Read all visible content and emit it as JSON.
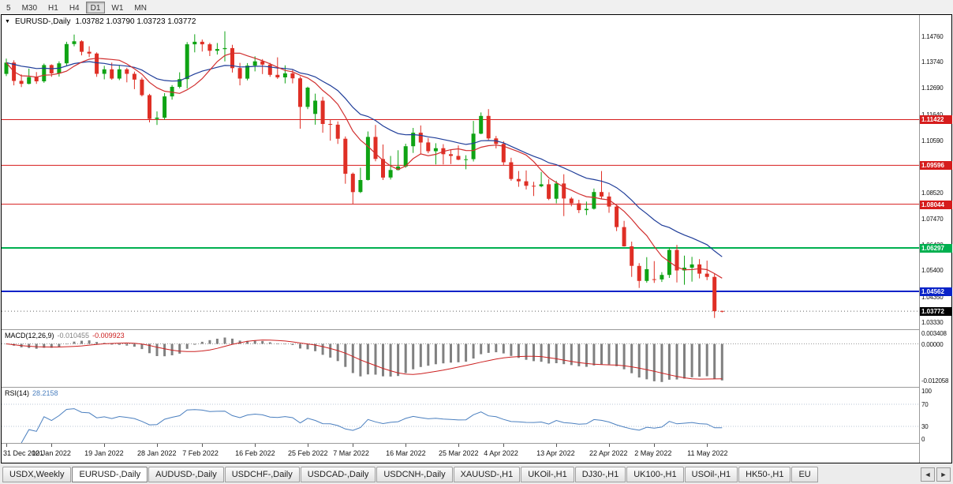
{
  "toolbar": {
    "timeframes": [
      "5",
      "M30",
      "H1",
      "H4",
      "D1",
      "W1",
      "MN"
    ],
    "active": "D1"
  },
  "chart_data": {
    "type": "candlestick",
    "symbol_label": "EURUSD-,Daily",
    "ohlc_text": "1.03782 1.03790 1.03723 1.03772",
    "marker_icon": "▼",
    "scale": {
      "price_max": 1.156,
      "price_min": 1.0305
    },
    "axis_prices": [
      "1.14760",
      "1.13740",
      "1.12690",
      "1.11640",
      "1.10590",
      "1.09540",
      "1.08520",
      "1.07470",
      "1.06420",
      "1.05400",
      "1.04350",
      "1.03330"
    ],
    "hlines": [
      {
        "price": 1.11422,
        "label": "1.11422",
        "color": "#d61c1c",
        "width": 1
      },
      {
        "price": 1.09596,
        "label": "1.09596",
        "color": "#d61c1c",
        "width": 1
      },
      {
        "price": 1.08044,
        "label": "1.08044",
        "color": "#d61c1c",
        "width": 1
      },
      {
        "price": 1.06297,
        "label": "1.06297",
        "color": "#00b050",
        "width": 2
      },
      {
        "price": 1.04562,
        "label": "1.04562",
        "color": "#0a23c8",
        "width": 2
      }
    ],
    "current_price": {
      "value": 1.03772,
      "label": "1.03772",
      "bg": "#000000"
    },
    "colors": {
      "up": "#0fa314",
      "down": "#df2f25",
      "ma_fast": "#d12f2f",
      "ma_slow": "#1f3d99",
      "macd_hist": "#808080",
      "macd_signal": "#cc2020",
      "rsi": "#4a7fbf"
    },
    "ma": {
      "fast_period": 8,
      "slow_period": 20
    },
    "candles": [
      [
        1.1325,
        1.1386,
        1.1316,
        1.137
      ],
      [
        1.137,
        1.1379,
        1.1279,
        1.1297
      ],
      [
        1.1297,
        1.1323,
        1.1272,
        1.1285
      ],
      [
        1.1285,
        1.1346,
        1.1283,
        1.1312
      ],
      [
        1.1312,
        1.1332,
        1.1285,
        1.1295
      ],
      [
        1.1295,
        1.1366,
        1.1289,
        1.136
      ],
      [
        1.136,
        1.1363,
        1.1313,
        1.1327
      ],
      [
        1.1327,
        1.1375,
        1.1314,
        1.1367
      ],
      [
        1.1367,
        1.1453,
        1.1355,
        1.1444
      ],
      [
        1.1444,
        1.1482,
        1.1435,
        1.1455
      ],
      [
        1.1455,
        1.1459,
        1.1399,
        1.1413
      ],
      [
        1.1413,
        1.1435,
        1.1392,
        1.1406
      ],
      [
        1.1406,
        1.1411,
        1.1313,
        1.1325
      ],
      [
        1.1325,
        1.1357,
        1.1303,
        1.1343
      ],
      [
        1.1343,
        1.137,
        1.1301,
        1.1306
      ],
      [
        1.1306,
        1.136,
        1.13,
        1.1343
      ],
      [
        1.1343,
        1.1349,
        1.1291,
        1.1325
      ],
      [
        1.1325,
        1.1334,
        1.1264,
        1.1302
      ],
      [
        1.1302,
        1.131,
        1.1235,
        1.124
      ],
      [
        1.124,
        1.1245,
        1.1131,
        1.1145
      ],
      [
        1.1145,
        1.1175,
        1.1121,
        1.115
      ],
      [
        1.115,
        1.1248,
        1.1141,
        1.1235
      ],
      [
        1.1235,
        1.128,
        1.1222,
        1.1273
      ],
      [
        1.1273,
        1.1331,
        1.1267,
        1.1304
      ],
      [
        1.1304,
        1.1452,
        1.1266,
        1.1443
      ],
      [
        1.1443,
        1.1483,
        1.1411,
        1.1453
      ],
      [
        1.1453,
        1.1462,
        1.1414,
        1.1443
      ],
      [
        1.1443,
        1.1449,
        1.1396,
        1.1417
      ],
      [
        1.1417,
        1.1448,
        1.1402,
        1.1424
      ],
      [
        1.1424,
        1.1495,
        1.1375,
        1.1428
      ],
      [
        1.1428,
        1.1441,
        1.133,
        1.1348
      ],
      [
        1.1348,
        1.1369,
        1.1279,
        1.1306
      ],
      [
        1.1306,
        1.1368,
        1.1299,
        1.1358
      ],
      [
        1.1358,
        1.1395,
        1.1335,
        1.1375
      ],
      [
        1.1375,
        1.1384,
        1.1324,
        1.1362
      ],
      [
        1.1362,
        1.1369,
        1.1313,
        1.1321
      ],
      [
        1.1321,
        1.1391,
        1.1305,
        1.1311
      ],
      [
        1.1311,
        1.1359,
        1.1287,
        1.1327
      ],
      [
        1.1327,
        1.1342,
        1.1287,
        1.1307
      ],
      [
        1.1307,
        1.1315,
        1.1106,
        1.1193
      ],
      [
        1.1193,
        1.1274,
        1.1184,
        1.127
      ],
      [
        1.1165,
        1.1246,
        1.1122,
        1.1218
      ],
      [
        1.1218,
        1.1233,
        1.109,
        1.1125
      ],
      [
        1.1125,
        1.1144,
        1.1058,
        1.1122
      ],
      [
        1.1122,
        1.1135,
        1.1045,
        1.1066
      ],
      [
        1.1066,
        1.1075,
        1.0886,
        1.0926
      ],
      [
        1.0926,
        1.0931,
        1.0806,
        1.0853
      ],
      [
        1.0853,
        1.095,
        1.0849,
        1.0901
      ],
      [
        1.0901,
        1.1095,
        1.0899,
        1.1073
      ],
      [
        1.1073,
        1.1121,
        1.0976,
        1.0985
      ],
      [
        1.0985,
        1.1043,
        1.0901,
        1.0911
      ],
      [
        1.0911,
        1.0997,
        1.0903,
        1.0941
      ],
      [
        1.0941,
        1.102,
        1.0939,
        1.0955
      ],
      [
        1.0955,
        1.1046,
        1.095,
        1.1036
      ],
      [
        1.1036,
        1.1109,
        1.1009,
        1.109
      ],
      [
        1.109,
        1.1119,
        1.1003,
        1.1051
      ],
      [
        1.1051,
        1.1069,
        1.1008,
        1.1016
      ],
      [
        1.1016,
        1.1048,
        1.0963,
        1.1028
      ],
      [
        1.1028,
        1.1044,
        1.0963,
        1.1004
      ],
      [
        1.1004,
        1.1021,
        1.0965,
        1.0997
      ],
      [
        1.0997,
        1.1039,
        1.098,
        1.0982
      ],
      [
        1.0982,
        1.1,
        1.0944,
        1.0984
      ],
      [
        1.0984,
        1.1137,
        1.0975,
        1.1086
      ],
      [
        1.1086,
        1.1171,
        1.1084,
        1.1157
      ],
      [
        1.1157,
        1.1184,
        1.1061,
        1.1067
      ],
      [
        1.1067,
        1.1077,
        1.1027,
        1.1045
      ],
      [
        1.1045,
        1.1056,
        1.096,
        1.0972
      ],
      [
        1.0972,
        1.099,
        1.0898,
        1.0905
      ],
      [
        1.0905,
        1.0937,
        1.0874,
        1.0896
      ],
      [
        1.0896,
        1.0939,
        1.0863,
        1.0878
      ],
      [
        1.0878,
        1.0894,
        1.0837,
        1.0876
      ],
      [
        1.0876,
        1.0933,
        1.0872,
        1.0884
      ],
      [
        1.0884,
        1.0904,
        1.0821,
        1.0826
      ],
      [
        1.0826,
        1.0898,
        1.0808,
        1.0887
      ],
      [
        1.0887,
        1.0924,
        1.0757,
        1.0827
      ],
      [
        1.0827,
        1.0833,
        1.0796,
        1.0808
      ],
      [
        1.0808,
        1.0822,
        1.0769,
        1.0781
      ],
      [
        1.0781,
        1.0815,
        1.0761,
        1.0786
      ],
      [
        1.0786,
        1.0867,
        1.0783,
        1.0853
      ],
      [
        1.0853,
        1.0937,
        1.0824,
        1.0835
      ],
      [
        1.0835,
        1.0852,
        1.077,
        1.0795
      ],
      [
        1.0795,
        1.08,
        1.0697,
        1.0713
      ],
      [
        1.0713,
        1.0738,
        1.0635,
        1.0636
      ],
      [
        1.0636,
        1.0655,
        1.0514,
        1.0558
      ],
      [
        1.0558,
        1.0569,
        1.047,
        1.0498
      ],
      [
        1.0498,
        1.0593,
        1.0491,
        1.0545
      ],
      [
        1.0505,
        1.0577,
        1.049,
        1.0504
      ],
      [
        1.0504,
        1.0533,
        1.0494,
        1.0522
      ],
      [
        1.0522,
        1.0632,
        1.051,
        1.0622
      ],
      [
        1.0622,
        1.0642,
        1.0492,
        1.054
      ],
      [
        1.054,
        1.0599,
        1.0483,
        1.0551
      ],
      [
        1.0551,
        1.0594,
        1.0495,
        1.0564
      ],
      [
        1.0564,
        1.0585,
        1.0508,
        1.0527
      ],
      [
        1.0527,
        1.0579,
        1.0501,
        1.0514
      ],
      [
        1.0514,
        1.0527,
        1.035,
        1.03772
      ],
      [
        1.03782,
        1.0379,
        1.03723,
        1.03772
      ]
    ],
    "date_labels": [
      [
        "31 Dec 2021",
        0
      ],
      [
        "10 Jan 2022",
        6
      ],
      [
        "19 Jan 2022",
        13
      ],
      [
        "28 Jan 2022",
        20
      ],
      [
        "7 Feb 2022",
        26
      ],
      [
        "16 Feb 2022",
        33
      ],
      [
        "25 Feb 2022",
        40
      ],
      [
        "7 Mar 2022",
        46
      ],
      [
        "16 Mar 2022",
        53
      ],
      [
        "25 Mar 2022",
        60
      ],
      [
        "4 Apr 2022",
        66
      ],
      [
        "13 Apr 2022",
        73
      ],
      [
        "22 Apr 2022",
        80
      ],
      [
        "2 May 2022",
        86
      ],
      [
        "11 May 2022",
        93
      ]
    ],
    "macd": {
      "label": "MACD(12,26,9)",
      "value_main": "-0.010455",
      "value_signal": "-0.009923",
      "fast": 12,
      "slow": 26,
      "signal": 9,
      "axis": [
        "0.003408",
        "0.00000",
        "-0.012058"
      ],
      "range": [
        0.0045,
        -0.014
      ]
    },
    "rsi": {
      "label": "RSI(14)",
      "value": "28.2158",
      "period": 14,
      "axis": [
        "100",
        "70",
        "30",
        "0"
      ],
      "levels": [
        70,
        30
      ]
    }
  },
  "tabs": {
    "items": [
      "USDX,Weekly",
      "EURUSD-,Daily",
      "AUDUSD-,Daily",
      "USDCHF-,Daily",
      "USDCAD-,Daily",
      "USDCNH-,Daily",
      "XAUUSD-,H1",
      "UKOil-,H1",
      "DJ30-,H1",
      "UK100-,H1",
      "USOil-,H1",
      "HK50-,H1",
      "EU"
    ],
    "active_index": 1,
    "scroll_left_icon": "◄",
    "scroll_right_icon": "►"
  }
}
